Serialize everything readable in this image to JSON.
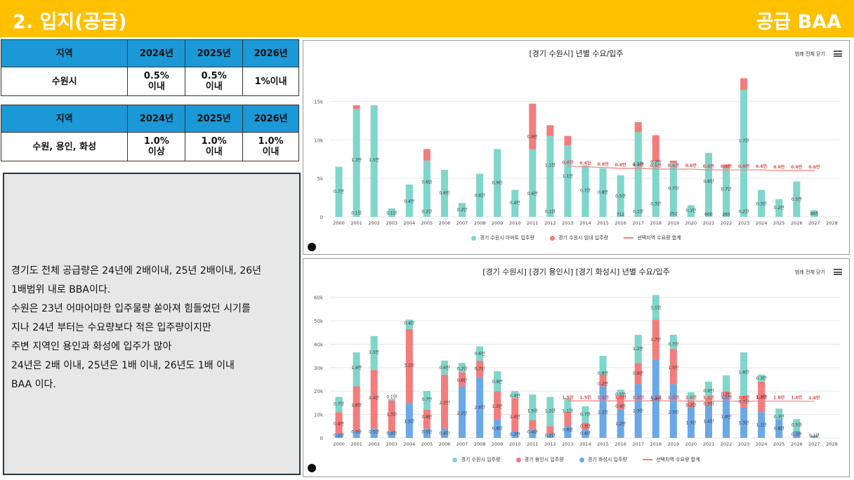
{
  "header": {
    "title": "2. 입지(공급)",
    "tag": "공급 BAA"
  },
  "table1": {
    "headers": [
      "지역",
      "2024년",
      "2025년",
      "2026년"
    ],
    "row": [
      "수원시",
      "0.5%\n이내",
      "0.5%\n이내",
      "1%이내"
    ]
  },
  "table2": {
    "headers": [
      "지역",
      "2024년",
      "2025년",
      "2026년"
    ],
    "row": [
      "수원, 용인, 화성",
      "1.0%\n이상",
      "1.0%\n이내",
      "1.0%\n이내"
    ]
  },
  "note": {
    "lines": [
      "경기도 전체 공급량은 24년에 2배이내, 25년 2배이내, 26년",
      "1배범위 내로 BBA이다.",
      "수원은 23년 어마어마한 입주물량 쏟아져 힘들었던 시기를",
      "지나 24년 부터는 수요량보다 적은 입주량이지만",
      "주변 지역인 용인과 화성에 입주가 많아",
      "24년은 2배 이내, 25년은 1배 이내, 26년도 1배 이내",
      "BAA 이다."
    ]
  },
  "colors": {
    "teal": "#7fd6cb",
    "red": "#f47c7c",
    "blue": "#6aa8e8",
    "line": "#f08080",
    "accent": "#ffc000",
    "head": "#1b98d6"
  },
  "chart_data": [
    {
      "type": "bar",
      "title": "[경기 수원시] 년별 수요/입주",
      "button": "범례 전체 닫기",
      "categories": [
        "2000",
        "2001",
        "2002",
        "2003",
        "2004",
        "2005",
        "2006",
        "2007",
        "2008",
        "2009",
        "2010",
        "2011",
        "2012",
        "2013",
        "2014",
        "2015",
        "2016",
        "2017",
        "2018",
        "2019",
        "2020",
        "2021",
        "2022",
        "2023",
        "2024",
        "2025",
        "2026",
        "2027",
        "2028"
      ],
      "yticks": [
        "0",
        "5k",
        "10k",
        "15k"
      ],
      "ylim": [
        0,
        18500
      ],
      "series": [
        {
          "name": "경기 수원시 아파트 입주량",
          "color": "#7fd6cb",
          "values": [
            6500,
            14000,
            14500,
            1100,
            4200,
            7300,
            6100,
            1800,
            5600,
            8800,
            3500,
            8800,
            10500,
            9300,
            6700,
            6300,
            5400,
            11000,
            7200,
            7000,
            1500,
            8300,
            6300,
            16500,
            3500,
            2300,
            4600,
            865,
            0
          ]
        },
        {
          "name": "경기 수원시 임대 입주량",
          "color": "#f47c7c",
          "values": [
            0,
            500,
            0,
            0,
            0,
            1500,
            0,
            0,
            0,
            0,
            0,
            5900,
            1400,
            1200,
            0,
            0,
            0,
            1300,
            3400,
            300,
            0,
            0,
            500,
            1500,
            0,
            0,
            0,
            0,
            0
          ]
        },
        {
          "name": "선택지역 수요량 합계",
          "color": "#f08080",
          "type": "line",
          "start_index": 13,
          "values": [
            null,
            null,
            null,
            null,
            null,
            null,
            null,
            null,
            null,
            null,
            null,
            null,
            null,
            6600,
            6500,
            6400,
            6300,
            6300,
            6200,
            6200,
            6200,
            6100,
            6100,
            6100,
            6100,
            6000,
            6000,
            6000,
            null
          ]
        }
      ],
      "labels": [
        {
          "i": 0,
          "t": "0.7만",
          "v": 3300
        },
        {
          "i": 1,
          "t": "1.3만",
          "v": 7400
        },
        {
          "i": 1,
          "t": "0.1만",
          "v": 500
        },
        {
          "i": 2,
          "t": "1.5만",
          "v": 7400
        },
        {
          "i": 3,
          "t": "0.1만",
          "v": 500
        },
        {
          "i": 4,
          "t": "0.4만",
          "v": 2000
        },
        {
          "i": 5,
          "t": "0.6만",
          "v": 4500
        },
        {
          "i": 5,
          "t": "0.2만",
          "v": 700
        },
        {
          "i": 6,
          "t": "0.6만",
          "v": 3100
        },
        {
          "i": 7,
          "t": "0.2만",
          "v": 900
        },
        {
          "i": 8,
          "t": "0.6만",
          "v": 2800
        },
        {
          "i": 9,
          "t": "0.9만",
          "v": 4400
        },
        {
          "i": 10,
          "t": "0.4만",
          "v": 1800
        },
        {
          "i": 11,
          "t": "0.9만",
          "v": 10400
        },
        {
          "i": 11,
          "t": "0.6만",
          "v": 3000
        },
        {
          "i": 12,
          "t": "1.1만",
          "v": 6700
        },
        {
          "i": 12,
          "t": "0.1만",
          "v": 700
        },
        {
          "i": 13,
          "t": "1.1만",
          "v": 5300
        },
        {
          "i": 14,
          "t": "0.7만",
          "v": 3400
        },
        {
          "i": 15,
          "t": "0.8만",
          "v": 3200
        },
        {
          "i": 16,
          "t": "0.5만",
          "v": 2700
        },
        {
          "i": 16,
          "t": "712",
          "v": 300
        },
        {
          "i": 17,
          "t": "1.1만",
          "v": 6900
        },
        {
          "i": 17,
          "t": "0.1만",
          "v": 700
        },
        {
          "i": 18,
          "t": "0.7만",
          "v": 7100
        },
        {
          "i": 18,
          "t": "0.3만",
          "v": 1700
        },
        {
          "i": 19,
          "t": "0.7만",
          "v": 3700
        },
        {
          "i": 19,
          "t": "252",
          "v": 400
        },
        {
          "i": 20,
          "t": "0.1만",
          "v": 800
        },
        {
          "i": 21,
          "t": "0.8만",
          "v": 4600
        },
        {
          "i": 21,
          "t": "600",
          "v": 300
        },
        {
          "i": 22,
          "t": "0.7만",
          "v": 3600
        },
        {
          "i": 22,
          "t": "285",
          "v": 300
        },
        {
          "i": 23,
          "t": "1.7만",
          "v": 9900
        },
        {
          "i": 23,
          "t": "0.2만",
          "v": 700
        },
        {
          "i": 24,
          "t": "0.3만",
          "v": 1700
        },
        {
          "i": 25,
          "t": "0.2만",
          "v": 1200
        },
        {
          "i": 26,
          "t": "0.5만",
          "v": 2300
        },
        {
          "i": 27,
          "t": "865",
          "v": 400
        }
      ],
      "line_labels": [
        "0.6만",
        "0.6만",
        "0.6만",
        "0.6만",
        "0.6만",
        "0.6만",
        "0.6만",
        "0.6만",
        "0.6만",
        "0.6만",
        "0.6만",
        "0.6만",
        "0.6만",
        "0.6만",
        "0.6만"
      ]
    },
    {
      "type": "bar",
      "title": "[경기 수원시] [경기 용인시] [경기 화성시] 년별 수요/입주",
      "button": "범례 전체 닫기",
      "categories": [
        "2000",
        "2001",
        "2002",
        "2003",
        "2004",
        "2005",
        "2006",
        "2007",
        "2008",
        "2009",
        "2010",
        "2011",
        "2012",
        "2013",
        "2014",
        "2015",
        "2016",
        "2017",
        "2018",
        "2019",
        "2020",
        "2021",
        "2022",
        "2023",
        "2024",
        "2025",
        "2026",
        "2027",
        "2028"
      ],
      "yticks": [
        "0",
        "10k",
        "20k",
        "30k",
        "40k",
        "50k",
        "60k"
      ],
      "ylim": [
        0,
        65000
      ],
      "series": [
        {
          "name": "경기 화성시 입주량",
          "color": "#6aa8e8",
          "values": [
            2000,
            3000,
            4000,
            3000,
            15000,
            4000,
            4000,
            22000,
            26000,
            8000,
            3000,
            3500,
            2000,
            5000,
            3500,
            22000,
            12000,
            23000,
            33500,
            23000,
            13000,
            14000,
            18000,
            13000,
            11000,
            8000,
            3000,
            800,
            0
          ]
        },
        {
          "name": "경기 용인시 입주량",
          "color": "#f47c7c",
          "values": [
            9000,
            19000,
            25000,
            13000,
            31500,
            8000,
            23000,
            6000,
            7000,
            12000,
            14000,
            4000,
            3000,
            6000,
            3000,
            5000,
            6000,
            9000,
            17000,
            15000,
            3000,
            3000,
            2000,
            5000,
            13000,
            0,
            0,
            0,
            0
          ]
        },
        {
          "name": "경기 수원시 입주량",
          "color": "#7fd6cb",
          "values": [
            6500,
            14500,
            14500,
            600,
            4000,
            8000,
            6000,
            4000,
            6000,
            8500,
            3000,
            11000,
            12500,
            6000,
            7000,
            8000,
            2600,
            12000,
            10500,
            6000,
            3500,
            7000,
            6700,
            18500,
            3000,
            4500,
            5000,
            300,
            0
          ]
        },
        {
          "name": "선택지역 수요량 합계",
          "color": "#f08080",
          "type": "line",
          "values": [
            null,
            null,
            null,
            null,
            null,
            null,
            null,
            null,
            null,
            null,
            null,
            null,
            null,
            15800,
            15800,
            15800,
            15800,
            15800,
            15800,
            15800,
            15700,
            15700,
            15700,
            15700,
            15700,
            15700,
            15700,
            15600,
            null
          ]
        }
      ],
      "labels": [
        {
          "i": 0,
          "t": "0.7만",
          "v": 14500
        },
        {
          "i": 0,
          "t": "0.9만",
          "v": 6000
        },
        {
          "i": 0,
          "t": "0.2만",
          "v": 1000
        },
        {
          "i": 1,
          "t": "1.4만",
          "v": 30000
        },
        {
          "i": 1,
          "t": "1.8만",
          "v": 14000
        },
        {
          "i": 1,
          "t": "0.3만",
          "v": 2500
        },
        {
          "i": 2,
          "t": "1.5만",
          "v": 36500
        },
        {
          "i": 2,
          "t": "2.4만",
          "v": 17000
        },
        {
          "i": 2,
          "t": "0.5만",
          "v": 2500
        },
        {
          "i": 3,
          "t": "0.1만",
          "v": 17500
        },
        {
          "i": 3,
          "t": "1.3만",
          "v": 10000
        },
        {
          "i": 3,
          "t": "0.4만",
          "v": 2000
        },
        {
          "i": 4,
          "t": "0.4만",
          "v": 49000
        },
        {
          "i": 4,
          "t": "3.2만",
          "v": 31000
        },
        {
          "i": 4,
          "t": "1.5만",
          "v": 7000
        },
        {
          "i": 5,
          "t": "0.7만",
          "v": 16500
        },
        {
          "i": 5,
          "t": "0.8만",
          "v": 9000
        },
        {
          "i": 5,
          "t": "0.5만",
          "v": 2500
        },
        {
          "i": 6,
          "t": "0.6만",
          "v": 30000
        },
        {
          "i": 6,
          "t": "2.3만",
          "v": 15000
        },
        {
          "i": 6,
          "t": "0.4만",
          "v": 2000
        },
        {
          "i": 7,
          "t": "0.2만",
          "v": 29500
        },
        {
          "i": 7,
          "t": "0.6만",
          "v": 24500
        },
        {
          "i": 7,
          "t": "2.2만",
          "v": 10500
        },
        {
          "i": 8,
          "t": "0.6만",
          "v": 36000
        },
        {
          "i": 8,
          "t": "0.7만",
          "v": 29500
        },
        {
          "i": 8,
          "t": "2.6만",
          "v": 13000
        },
        {
          "i": 9,
          "t": "0.9만",
          "v": 24000
        },
        {
          "i": 9,
          "t": "1.2만",
          "v": 13500
        },
        {
          "i": 9,
          "t": "0.8만",
          "v": 4000
        },
        {
          "i": 10,
          "t": "0.4만",
          "v": 18000
        },
        {
          "i": 10,
          "t": "1.4만",
          "v": 9000
        },
        {
          "i": 10,
          "t": "0.3만",
          "v": 1500
        },
        {
          "i": 11,
          "t": "1.5만",
          "v": 11500
        },
        {
          "i": 11,
          "t": "0.4만",
          "v": 2500
        },
        {
          "i": 12,
          "t": "1.2만",
          "v": 11500
        },
        {
          "i": 12,
          "t": "0.2만",
          "v": 1000
        },
        {
          "i": 13,
          "t": "1.1만",
          "v": 11500
        },
        {
          "i": 13,
          "t": "0.6만",
          "v": 3500
        },
        {
          "i": 14,
          "t": "0.7만",
          "v": 10000
        },
        {
          "i": 14,
          "t": "0.3만",
          "v": 5000
        },
        {
          "i": 14,
          "t": "0.4만",
          "v": 2000
        },
        {
          "i": 15,
          "t": "0.8만",
          "v": 27500
        },
        {
          "i": 15,
          "t": "0.2만",
          "v": 23000
        },
        {
          "i": 15,
          "t": "2.2만",
          "v": 11000
        },
        {
          "i": 16,
          "t": "0.5만",
          "v": 18500
        },
        {
          "i": 16,
          "t": "0.4만",
          "v": 13500
        },
        {
          "i": 16,
          "t": "1.2만",
          "v": 6000
        },
        {
          "i": 17,
          "t": "1.2만",
          "v": 38000
        },
        {
          "i": 17,
          "t": "0.9만",
          "v": 27500
        },
        {
          "i": 17,
          "t": "2.3만",
          "v": 11500
        },
        {
          "i": 18,
          "t": "1.1만",
          "v": 55500
        },
        {
          "i": 18,
          "t": "1.7만",
          "v": 42000
        },
        {
          "i": 18,
          "t": "3.4만",
          "v": 16500
        },
        {
          "i": 19,
          "t": "0.7만",
          "v": 40000
        },
        {
          "i": 19,
          "t": "1.5만",
          "v": 30000
        },
        {
          "i": 19,
          "t": "2.3만",
          "v": 11000
        },
        {
          "i": 20,
          "t": "0.2만",
          "v": 14000
        },
        {
          "i": 20,
          "t": "1.3만",
          "v": 6500
        },
        {
          "i": 21,
          "t": "0.9만",
          "v": 20000
        },
        {
          "i": 21,
          "t": "0.3만",
          "v": 14500
        },
        {
          "i": 21,
          "t": "1.4만",
          "v": 7000
        },
        {
          "i": 22,
          "t": "0.2만",
          "v": 18500
        },
        {
          "i": 22,
          "t": "1.8만",
          "v": 9000
        },
        {
          "i": 23,
          "t": "1.8만",
          "v": 28000
        },
        {
          "i": 23,
          "t": "0.7만",
          "v": 15500
        },
        {
          "i": 23,
          "t": "1.3만",
          "v": 6500
        },
        {
          "i": 24,
          "t": "0.3만",
          "v": 25500
        },
        {
          "i": 24,
          "t": "1.3만",
          "v": 17500
        },
        {
          "i": 24,
          "t": "1.1만",
          "v": 5500
        },
        {
          "i": 25,
          "t": "0.3만",
          "v": 9000
        },
        {
          "i": 25,
          "t": "0.8만",
          "v": 4000
        },
        {
          "i": 26,
          "t": "0.5만",
          "v": 5500
        },
        {
          "i": 26,
          "t": "0.3만",
          "v": 1500
        },
        {
          "i": 27,
          "t": "0.1만",
          "v": 1000
        }
      ],
      "line_labels": [
        "1.5만",
        "1.5만",
        "1.5만",
        "1.5만",
        "1.5만",
        "1.5만",
        "1.5만",
        "1.6만",
        "1.6만",
        "1.6만",
        "1.6만",
        "1.6만",
        "1.6만",
        "1.6만",
        "1.6만"
      ]
    }
  ]
}
